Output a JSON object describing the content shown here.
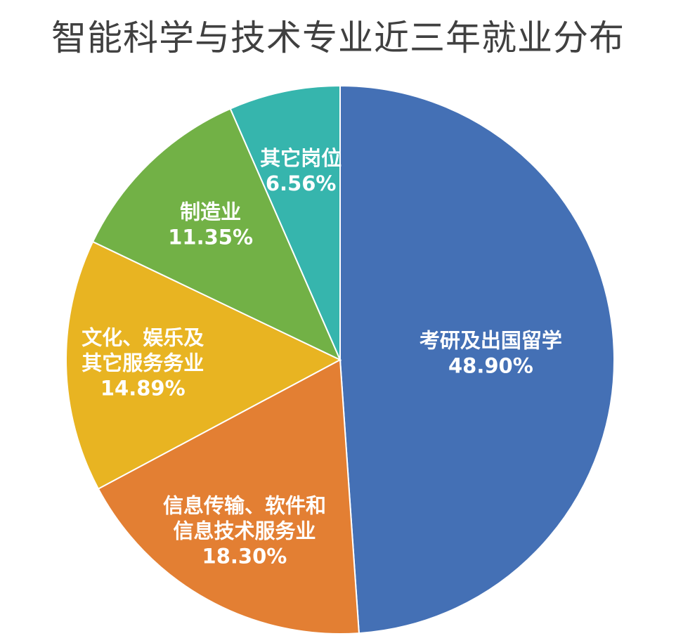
{
  "chart_data": {
    "type": "pie",
    "title": "智能科学与技术专业近三年就业分布",
    "slices": [
      {
        "label_lines": [
          "考研及出国留学"
        ],
        "value": 48.9,
        "value_label": "48.90%",
        "color": "#4470b5"
      },
      {
        "label_lines": [
          "信息传输、软件和",
          "信息技术服务业"
        ],
        "value": 18.3,
        "value_label": "18.30%",
        "color": "#e37f33"
      },
      {
        "label_lines": [
          "文化、娱乐及",
          "其它服务务业"
        ],
        "value": 14.89,
        "value_label": "14.89%",
        "color": "#e8b422"
      },
      {
        "label_lines": [
          "制造业"
        ],
        "value": 11.35,
        "value_label": "11.35%",
        "color": "#72b146"
      },
      {
        "label_lines": [
          "其它岗位"
        ],
        "value": 6.56,
        "value_label": "6.56%",
        "color": "#36b5ad"
      }
    ],
    "legend": "none",
    "start": "12 o'clock",
    "direction": "clockwise"
  }
}
